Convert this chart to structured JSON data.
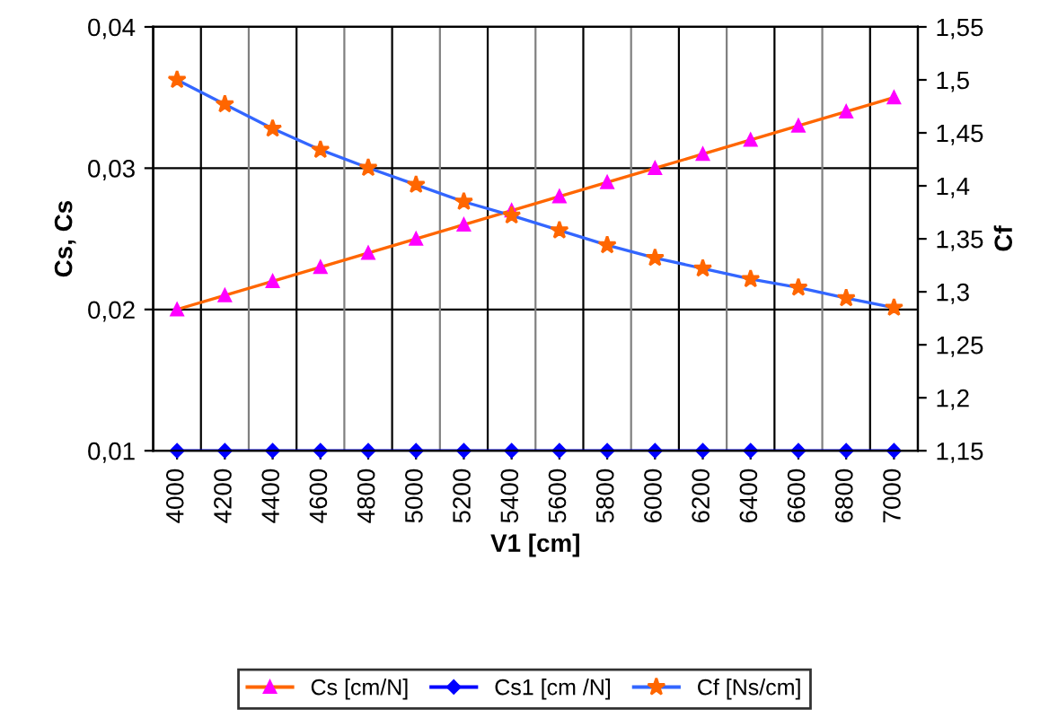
{
  "chart_data": {
    "type": "line",
    "xlabel": "V1 [cm]",
    "ylabel": "Cs, Cs",
    "y2label": "Cf",
    "categories": [
      "4000",
      "4200",
      "4400",
      "4600",
      "4800",
      "5000",
      "5200",
      "5400",
      "5600",
      "5800",
      "6000",
      "6200",
      "6400",
      "6600",
      "6800",
      "7000"
    ],
    "series": [
      {
        "name": "Cs [cm/N]",
        "color": "#ff6600",
        "marker": "triangle",
        "colors": [
          "#ff00ff",
          "#ff00ff",
          "#ff00ff",
          "#ff00ff",
          "#ff00ff",
          "#ff00ff",
          "#ff00ff",
          "#ff00ff",
          "#ff00ff",
          "#ff00ff",
          "#ff00ff",
          "#ff00ff",
          "#ff00ff",
          "#ff00ff",
          "#ff00ff",
          "#ff00ff"
        ],
        "values": [
          0.02,
          0.021,
          0.022,
          0.023,
          0.024,
          0.025,
          0.026,
          0.027,
          0.028,
          0.029,
          0.03,
          0.031,
          0.032,
          0.033,
          0.034,
          0.035
        ]
      },
      {
        "name": "Cs1 [cm /N]",
        "color": "#0000ff",
        "marker": "diamond",
        "colors": [
          "#0000ff",
          "#0000ff",
          "#0000ff",
          "#0000ff",
          "#0000ff",
          "#0000ff",
          "#0000ff",
          "#0000ff",
          "#0000ff",
          "#0000ff",
          "#0000ff",
          "#0000ff",
          "#0000ff",
          "#0000ff",
          "#0000ff",
          "#0000ff"
        ],
        "values": [
          0.01,
          0.01,
          0.01,
          0.01,
          0.01,
          0.01,
          0.01,
          0.01,
          0.01,
          0.01,
          0.01,
          0.01,
          0.01,
          0.01,
          0.01,
          0.01
        ]
      },
      {
        "name": "Cf [Ns/cm]",
        "axis": "y2",
        "color": "#3366ff",
        "marker": "star",
        "colors": [
          "#ff6600",
          "#ff6600",
          "#ff6600",
          "#ff6600",
          "#ff6600",
          "#ff6600",
          "#ff6600",
          "#ff6600",
          "#ff6600",
          "#ff6600",
          "#ff6600",
          "#ff6600",
          "#ff6600",
          "#ff6600",
          "#ff6600",
          "#ff6600"
        ],
        "values": [
          1.5,
          1.477,
          1.454,
          1.434,
          1.417,
          1.401,
          1.385,
          1.372,
          1.358,
          1.344,
          1.332,
          1.322,
          1.312,
          1.304,
          1.294,
          1.285
        ]
      }
    ],
    "ylim": [
      0.01,
      0.04
    ],
    "yticks": [
      {
        "value": 0.01,
        "label": "0,01"
      },
      {
        "value": 0.02,
        "label": "0,02"
      },
      {
        "value": 0.03,
        "label": "0,03"
      },
      {
        "value": 0.04,
        "label": "0,04"
      }
    ],
    "y2lim": [
      1.15,
      1.55
    ],
    "y2ticks": [
      {
        "value": 1.15,
        "label": "1,15"
      },
      {
        "value": 1.2,
        "label": "1,2"
      },
      {
        "value": 1.25,
        "label": "1,25"
      },
      {
        "value": 1.3,
        "label": "1,3"
      },
      {
        "value": 1.35,
        "label": "1,35"
      },
      {
        "value": 1.4,
        "label": "1,4"
      },
      {
        "value": 1.45,
        "label": "1,45"
      },
      {
        "value": 1.5,
        "label": "1,5"
      },
      {
        "value": 1.55,
        "label": "1,55"
      }
    ],
    "grid": true,
    "legend": "bottom",
    "line_style": "solid"
  }
}
